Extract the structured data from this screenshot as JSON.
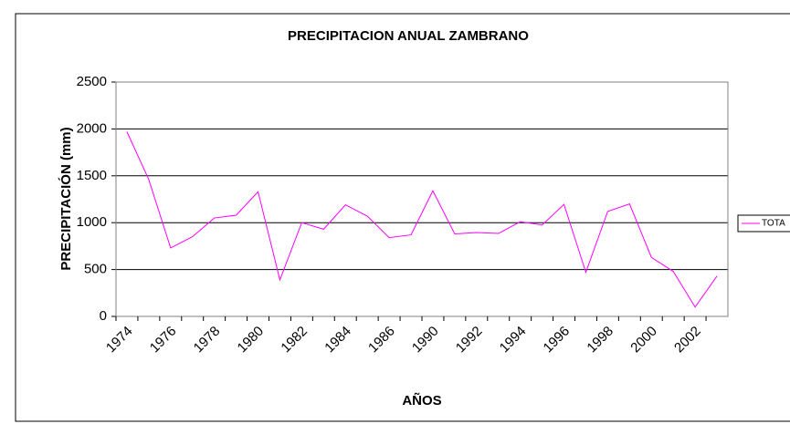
{
  "chart_data": {
    "type": "line",
    "title": "PRECIPITACION ANUAL ZAMBRANO",
    "x_label": "AÑOS",
    "y_label": "PRECIPITACIÓN (mm)",
    "categories": [
      "1974",
      null,
      "1976",
      null,
      "1978",
      null,
      "1980",
      null,
      "1982",
      null,
      "1984",
      null,
      "1986",
      null,
      "1990",
      null,
      "1992",
      null,
      "1994",
      null,
      "1996",
      null,
      "1998",
      null,
      "2000",
      null,
      "2002",
      null
    ],
    "series": [
      {
        "name": "TOTA",
        "color": "#ff00ff",
        "values": [
          1970,
          1460,
          730,
          850,
          1050,
          1080,
          1330,
          390,
          1000,
          930,
          1190,
          1070,
          840,
          870,
          1340,
          880,
          895,
          885,
          1010,
          975,
          1195,
          470,
          1120,
          1200,
          630,
          480,
          100,
          430
        ]
      }
    ],
    "ylim": [
      0,
      2500
    ],
    "yticks": [
      0,
      500,
      1000,
      1500,
      2000,
      2500
    ],
    "grid": true,
    "legend": "right"
  }
}
